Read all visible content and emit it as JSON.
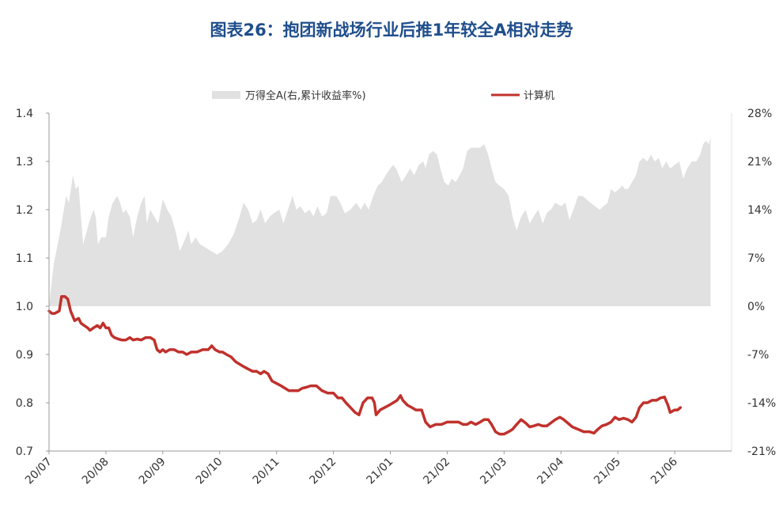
{
  "title": "图表26：抱团新战场行业后推1年较全A相对走势",
  "chart_data": {
    "type": "area+line",
    "legend": {
      "placement": "top",
      "entries": [
        "万得全A(右,累计收益率%)",
        "计算机"
      ]
    },
    "series": [
      {
        "name": "万得全A(右,累计收益率%)",
        "axis": "right",
        "style": "area",
        "color": "#e1e1e1"
      },
      {
        "name": "计算机",
        "axis": "left",
        "style": "line",
        "color": "#c0312c"
      }
    ],
    "x_ticks": [
      "20/07",
      "20/08",
      "20/09",
      "20/10",
      "20/11",
      "20/12",
      "21/01",
      "21/02",
      "21/03",
      "21/04",
      "21/05",
      "21/06"
    ],
    "x_range": [
      0,
      12
    ],
    "y_left": {
      "ticks": [
        "0.7",
        "0.8",
        "0.9",
        "1.0",
        "1.1",
        "1.2",
        "1.3",
        "1.4"
      ],
      "range": [
        0.7,
        1.4
      ]
    },
    "y_right": {
      "ticks": [
        "-21%",
        "-14%",
        "-7%",
        "0%",
        "7%",
        "14%",
        "21%",
        "28%"
      ],
      "range": [
        -21,
        28
      ]
    },
    "grid": false,
    "area_values": [
      [
        0.0,
        0.0
      ],
      [
        0.08,
        6
      ],
      [
        0.2,
        11
      ],
      [
        0.3,
        16
      ],
      [
        0.35,
        15
      ],
      [
        0.42,
        19
      ],
      [
        0.47,
        17
      ],
      [
        0.52,
        17.5
      ],
      [
        0.55,
        14
      ],
      [
        0.6,
        9
      ],
      [
        0.7,
        12
      ],
      [
        0.78,
        14
      ],
      [
        0.82,
        13
      ],
      [
        0.86,
        9
      ],
      [
        0.92,
        10
      ],
      [
        1.0,
        10
      ],
      [
        1.05,
        13
      ],
      [
        1.12,
        15
      ],
      [
        1.2,
        16
      ],
      [
        1.25,
        15
      ],
      [
        1.3,
        13.5
      ],
      [
        1.35,
        14
      ],
      [
        1.42,
        13
      ],
      [
        1.48,
        10
      ],
      [
        1.55,
        13
      ],
      [
        1.62,
        15
      ],
      [
        1.68,
        16
      ],
      [
        1.72,
        12
      ],
      [
        1.78,
        14
      ],
      [
        1.85,
        13
      ],
      [
        1.92,
        12
      ],
      [
        2.0,
        15.5
      ],
      [
        2.08,
        14
      ],
      [
        2.15,
        13
      ],
      [
        2.22,
        11
      ],
      [
        2.3,
        8
      ],
      [
        2.38,
        9.5
      ],
      [
        2.45,
        11
      ],
      [
        2.5,
        9
      ],
      [
        2.58,
        10
      ],
      [
        2.65,
        9
      ],
      [
        2.75,
        8.5
      ],
      [
        2.85,
        8
      ],
      [
        2.95,
        7.5
      ],
      [
        3.05,
        8
      ],
      [
        3.15,
        9
      ],
      [
        3.25,
        10.5
      ],
      [
        3.35,
        13
      ],
      [
        3.42,
        15
      ],
      [
        3.5,
        14
      ],
      [
        3.58,
        12
      ],
      [
        3.65,
        12.5
      ],
      [
        3.72,
        14
      ],
      [
        3.8,
        12
      ],
      [
        3.88,
        13
      ],
      [
        3.95,
        13.5
      ],
      [
        4.05,
        14
      ],
      [
        4.12,
        12
      ],
      [
        4.2,
        14
      ],
      [
        4.28,
        16
      ],
      [
        4.35,
        14
      ],
      [
        4.42,
        14.5
      ],
      [
        4.5,
        13.5
      ],
      [
        4.58,
        14
      ],
      [
        4.65,
        13
      ],
      [
        4.72,
        14.5
      ],
      [
        4.8,
        13
      ],
      [
        4.88,
        13.5
      ],
      [
        4.95,
        16
      ],
      [
        5.05,
        16
      ],
      [
        5.12,
        15
      ],
      [
        5.2,
        13.5
      ],
      [
        5.3,
        14
      ],
      [
        5.4,
        15
      ],
      [
        5.48,
        14
      ],
      [
        5.55,
        15
      ],
      [
        5.62,
        14
      ],
      [
        5.7,
        16
      ],
      [
        5.78,
        17.5
      ],
      [
        5.85,
        18
      ],
      [
        5.92,
        19
      ],
      [
        6.0,
        20
      ],
      [
        6.05,
        20.5
      ],
      [
        6.1,
        20
      ],
      [
        6.15,
        19
      ],
      [
        6.2,
        18
      ],
      [
        6.28,
        19
      ],
      [
        6.35,
        20
      ],
      [
        6.42,
        19
      ],
      [
        6.5,
        20.5
      ],
      [
        6.58,
        21
      ],
      [
        6.62,
        20
      ],
      [
        6.68,
        22
      ],
      [
        6.75,
        22.5
      ],
      [
        6.82,
        22
      ],
      [
        6.88,
        20
      ],
      [
        6.95,
        18
      ],
      [
        7.02,
        17.5
      ],
      [
        7.08,
        18.5
      ],
      [
        7.15,
        18
      ],
      [
        7.22,
        19
      ],
      [
        7.28,
        20
      ],
      [
        7.35,
        22.5
      ],
      [
        7.42,
        23
      ],
      [
        7.5,
        23
      ],
      [
        7.58,
        23
      ],
      [
        7.65,
        23.5
      ],
      [
        7.72,
        22
      ],
      [
        7.78,
        20
      ],
      [
        7.85,
        18
      ],
      [
        7.92,
        17.5
      ],
      [
        8.0,
        17
      ],
      [
        8.08,
        16
      ],
      [
        8.15,
        13
      ],
      [
        8.22,
        11
      ],
      [
        8.3,
        13
      ],
      [
        8.38,
        14
      ],
      [
        8.45,
        12
      ],
      [
        8.52,
        13
      ],
      [
        8.6,
        14
      ],
      [
        8.68,
        12
      ],
      [
        8.75,
        13.5
      ],
      [
        8.82,
        14
      ],
      [
        8.9,
        15
      ],
      [
        9.0,
        14.5
      ],
      [
        9.08,
        15
      ],
      [
        9.15,
        12.5
      ],
      [
        9.22,
        14
      ],
      [
        9.3,
        16
      ],
      [
        9.38,
        16
      ],
      [
        9.45,
        15.5
      ],
      [
        9.52,
        15
      ],
      [
        9.6,
        14.5
      ],
      [
        9.68,
        14
      ],
      [
        9.75,
        14.5
      ],
      [
        9.82,
        15
      ],
      [
        9.88,
        17
      ],
      [
        9.95,
        16.5
      ],
      [
        10.02,
        17
      ],
      [
        10.08,
        17.5
      ],
      [
        10.12,
        17
      ],
      [
        10.18,
        17
      ],
      [
        10.25,
        18
      ],
      [
        10.32,
        19
      ],
      [
        10.38,
        21
      ],
      [
        10.45,
        21.5
      ],
      [
        10.52,
        21
      ],
      [
        10.58,
        22
      ],
      [
        10.65,
        21
      ],
      [
        10.72,
        21.5
      ],
      [
        10.78,
        20
      ],
      [
        10.85,
        21
      ],
      [
        10.92,
        20
      ],
      [
        11.0,
        20.5
      ],
      [
        11.08,
        21
      ],
      [
        11.15,
        18.5
      ],
      [
        11.22,
        20
      ],
      [
        11.3,
        21
      ],
      [
        11.38,
        21
      ],
      [
        11.45,
        22
      ],
      [
        11.5,
        23.5
      ],
      [
        11.55,
        24
      ],
      [
        11.6,
        23.5
      ],
      [
        11.63,
        24.5
      ]
    ],
    "line_values": [
      [
        0.0,
        0.99
      ],
      [
        0.05,
        0.985
      ],
      [
        0.1,
        0.985
      ],
      [
        0.18,
        0.99
      ],
      [
        0.22,
        1.02
      ],
      [
        0.28,
        1.02
      ],
      [
        0.33,
        1.015
      ],
      [
        0.38,
        0.99
      ],
      [
        0.45,
        0.97
      ],
      [
        0.52,
        0.975
      ],
      [
        0.56,
        0.965
      ],
      [
        0.62,
        0.96
      ],
      [
        0.68,
        0.955
      ],
      [
        0.72,
        0.95
      ],
      [
        0.78,
        0.955
      ],
      [
        0.85,
        0.96
      ],
      [
        0.9,
        0.955
      ],
      [
        0.95,
        0.965
      ],
      [
        1.0,
        0.955
      ],
      [
        1.05,
        0.955
      ],
      [
        1.1,
        0.94
      ],
      [
        1.15,
        0.935
      ],
      [
        1.22,
        0.932
      ],
      [
        1.28,
        0.93
      ],
      [
        1.35,
        0.93
      ],
      [
        1.42,
        0.935
      ],
      [
        1.48,
        0.93
      ],
      [
        1.55,
        0.932
      ],
      [
        1.62,
        0.93
      ],
      [
        1.7,
        0.935
      ],
      [
        1.78,
        0.935
      ],
      [
        1.85,
        0.93
      ],
      [
        1.9,
        0.91
      ],
      [
        1.95,
        0.905
      ],
      [
        2.0,
        0.91
      ],
      [
        2.05,
        0.905
      ],
      [
        2.12,
        0.91
      ],
      [
        2.2,
        0.91
      ],
      [
        2.28,
        0.905
      ],
      [
        2.35,
        0.905
      ],
      [
        2.42,
        0.9
      ],
      [
        2.5,
        0.905
      ],
      [
        2.6,
        0.905
      ],
      [
        2.7,
        0.91
      ],
      [
        2.8,
        0.91
      ],
      [
        2.86,
        0.918
      ],
      [
        2.92,
        0.91
      ],
      [
        3.0,
        0.905
      ],
      [
        3.05,
        0.905
      ],
      [
        3.12,
        0.9
      ],
      [
        3.2,
        0.895
      ],
      [
        3.28,
        0.885
      ],
      [
        3.35,
        0.88
      ],
      [
        3.42,
        0.875
      ],
      [
        3.5,
        0.87
      ],
      [
        3.58,
        0.865
      ],
      [
        3.65,
        0.865
      ],
      [
        3.72,
        0.86
      ],
      [
        3.78,
        0.865
      ],
      [
        3.85,
        0.86
      ],
      [
        3.92,
        0.845
      ],
      [
        4.0,
        0.84
      ],
      [
        4.08,
        0.835
      ],
      [
        4.15,
        0.83
      ],
      [
        4.22,
        0.825
      ],
      [
        4.3,
        0.825
      ],
      [
        4.38,
        0.825
      ],
      [
        4.45,
        0.83
      ],
      [
        4.52,
        0.832
      ],
      [
        4.6,
        0.835
      ],
      [
        4.7,
        0.835
      ],
      [
        4.8,
        0.825
      ],
      [
        4.9,
        0.82
      ],
      [
        5.0,
        0.82
      ],
      [
        5.08,
        0.81
      ],
      [
        5.15,
        0.81
      ],
      [
        5.22,
        0.8
      ],
      [
        5.3,
        0.79
      ],
      [
        5.38,
        0.78
      ],
      [
        5.45,
        0.775
      ],
      [
        5.52,
        0.8
      ],
      [
        5.6,
        0.81
      ],
      [
        5.68,
        0.81
      ],
      [
        5.72,
        0.8
      ],
      [
        5.75,
        0.775
      ],
      [
        5.82,
        0.785
      ],
      [
        5.9,
        0.79
      ],
      [
        5.98,
        0.795
      ],
      [
        6.05,
        0.8
      ],
      [
        6.12,
        0.805
      ],
      [
        6.18,
        0.815
      ],
      [
        6.22,
        0.805
      ],
      [
        6.3,
        0.795
      ],
      [
        6.38,
        0.79
      ],
      [
        6.45,
        0.785
      ],
      [
        6.55,
        0.785
      ],
      [
        6.62,
        0.76
      ],
      [
        6.7,
        0.75
      ],
      [
        6.8,
        0.755
      ],
      [
        6.9,
        0.755
      ],
      [
        7.0,
        0.76
      ],
      [
        7.1,
        0.76
      ],
      [
        7.2,
        0.76
      ],
      [
        7.28,
        0.755
      ],
      [
        7.35,
        0.755
      ],
      [
        7.42,
        0.76
      ],
      [
        7.5,
        0.755
      ],
      [
        7.58,
        0.76
      ],
      [
        7.65,
        0.765
      ],
      [
        7.72,
        0.765
      ],
      [
        7.78,
        0.755
      ],
      [
        7.85,
        0.74
      ],
      [
        7.92,
        0.735
      ],
      [
        8.0,
        0.735
      ],
      [
        8.08,
        0.74
      ],
      [
        8.15,
        0.745
      ],
      [
        8.22,
        0.755
      ],
      [
        8.3,
        0.765
      ],
      [
        8.38,
        0.758
      ],
      [
        8.45,
        0.75
      ],
      [
        8.52,
        0.752
      ],
      [
        8.6,
        0.755
      ],
      [
        8.68,
        0.752
      ],
      [
        8.75,
        0.752
      ],
      [
        8.82,
        0.758
      ],
      [
        8.9,
        0.765
      ],
      [
        8.98,
        0.77
      ],
      [
        9.05,
        0.765
      ],
      [
        9.12,
        0.758
      ],
      [
        9.2,
        0.75
      ],
      [
        9.3,
        0.745
      ],
      [
        9.4,
        0.74
      ],
      [
        9.5,
        0.74
      ],
      [
        9.58,
        0.737
      ],
      [
        9.65,
        0.745
      ],
      [
        9.72,
        0.752
      ],
      [
        9.8,
        0.755
      ],
      [
        9.88,
        0.76
      ],
      [
        9.95,
        0.77
      ],
      [
        10.02,
        0.765
      ],
      [
        10.1,
        0.768
      ],
      [
        10.18,
        0.765
      ],
      [
        10.25,
        0.76
      ],
      [
        10.32,
        0.77
      ],
      [
        10.38,
        0.79
      ],
      [
        10.45,
        0.8
      ],
      [
        10.52,
        0.8
      ],
      [
        10.6,
        0.805
      ],
      [
        10.68,
        0.805
      ],
      [
        10.75,
        0.81
      ],
      [
        10.82,
        0.812
      ],
      [
        10.88,
        0.795
      ],
      [
        10.92,
        0.78
      ],
      [
        11.0,
        0.785
      ],
      [
        11.05,
        0.785
      ],
      [
        11.1,
        0.79
      ]
    ]
  }
}
